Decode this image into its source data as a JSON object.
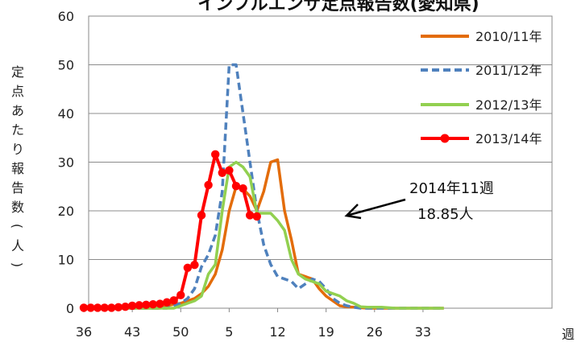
{
  "chart_data": {
    "type": "line",
    "title": "インフルエンザ定点報告数(愛知県)",
    "ylabel": "定点あたり報告数(人)",
    "xlabel": "週",
    "ylim": [
      0,
      60
    ],
    "yticks": [
      0,
      10,
      20,
      30,
      40,
      50,
      60
    ],
    "x_tick_labels": [
      "36",
      "43",
      "50",
      "5",
      "12",
      "19",
      "26",
      "33"
    ],
    "grid": true,
    "legend_position": "top-right",
    "series": [
      {
        "name": "2010/11年",
        "color": "#E36C0A",
        "style": "solid",
        "markers": false,
        "values": [
          0,
          0,
          0,
          0,
          0,
          0,
          0,
          0,
          0,
          0,
          0,
          0,
          0.5,
          0.8,
          1,
          1.5,
          2,
          3,
          4.5,
          7,
          12,
          20,
          25,
          24.5,
          23,
          20,
          24,
          30,
          30.5,
          20,
          14,
          7,
          6.5,
          6,
          4,
          2.5,
          1.5,
          0.5,
          0.3,
          0.2,
          0.1,
          0,
          0,
          0,
          0,
          0,
          0,
          0,
          0,
          0,
          0,
          0,
          0
        ]
      },
      {
        "name": "2011/12年",
        "color": "#4F81BD",
        "style": "dashed",
        "markers": false,
        "values": [
          0,
          0,
          0,
          0,
          0,
          0,
          0,
          0,
          0,
          0,
          0,
          0,
          0,
          0.5,
          1,
          2,
          4,
          8.5,
          11,
          15,
          24,
          50,
          50,
          40,
          30,
          20,
          13,
          9,
          6.5,
          6,
          5.5,
          4,
          5,
          6,
          5.5,
          4,
          2,
          1,
          0.5,
          0.2,
          0,
          0,
          0,
          0,
          0,
          0,
          0,
          0,
          0,
          0,
          0,
          0,
          0
        ]
      },
      {
        "name": "2012/13年",
        "color": "#92D050",
        "style": "solid",
        "markers": false,
        "values": [
          0,
          0,
          0,
          0,
          0,
          0,
          0,
          0,
          0,
          0,
          0,
          0,
          0,
          0,
          0.5,
          1,
          1.5,
          2.5,
          7,
          9,
          20,
          29,
          30,
          29,
          27,
          19.5,
          19.5,
          19.5,
          18,
          16,
          10,
          7,
          6,
          5.5,
          5,
          3.5,
          3,
          2.5,
          1.5,
          1,
          0.3,
          0.2,
          0.2,
          0.2,
          0.1,
          0,
          0,
          0,
          0,
          0,
          0,
          0,
          0
        ]
      },
      {
        "name": "2013/14年",
        "color": "#FF0000",
        "style": "solid",
        "markers": true,
        "values": [
          0.1,
          0.1,
          0.1,
          0.1,
          0.1,
          0.2,
          0.3,
          0.5,
          0.6,
          0.7,
          0.8,
          0.9,
          1.2,
          1.6,
          2.7,
          8.3,
          8.9,
          19.1,
          25.3,
          31.6,
          27.8,
          28.3,
          25.1,
          24.6,
          19.1,
          18.85
        ]
      }
    ],
    "annotation": {
      "line1": "2014年11週",
      "line2": "18.85人"
    }
  }
}
